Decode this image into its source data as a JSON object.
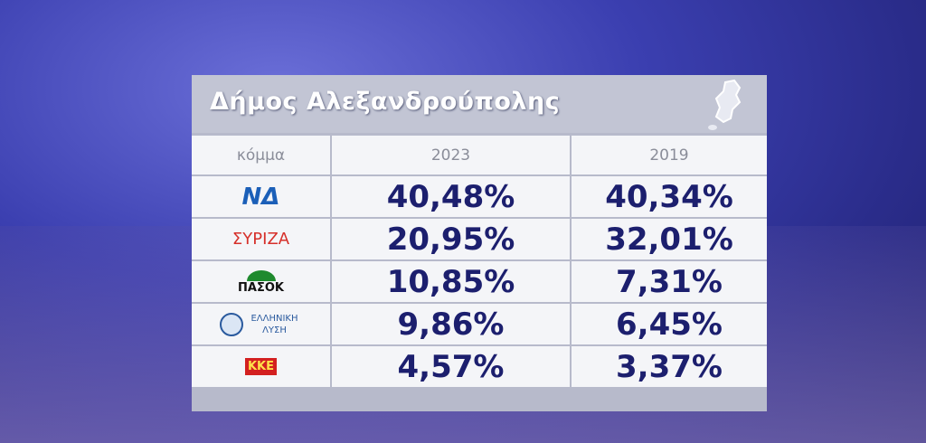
{
  "header": {
    "title": "Δήμος Αλεξανδρούπολης"
  },
  "table": {
    "columns": [
      "κόμμα",
      "2023",
      "2019"
    ],
    "rows": [
      [
        "ΝΔ",
        "40,48%",
        "40,34%"
      ],
      [
        "ΣΥΡΙΖΑ",
        "20,95%",
        "32,01%"
      ],
      [
        "ΠΑΣΟΚ",
        "10,85%",
        "7,31%"
      ],
      [
        "ΕΛΛΗΝΙΚΗ ΛΥΣΗ",
        "9,86%",
        "6,45%"
      ],
      [
        "ΚΚΕ",
        "4,57%",
        "3,37%"
      ]
    ]
  }
}
